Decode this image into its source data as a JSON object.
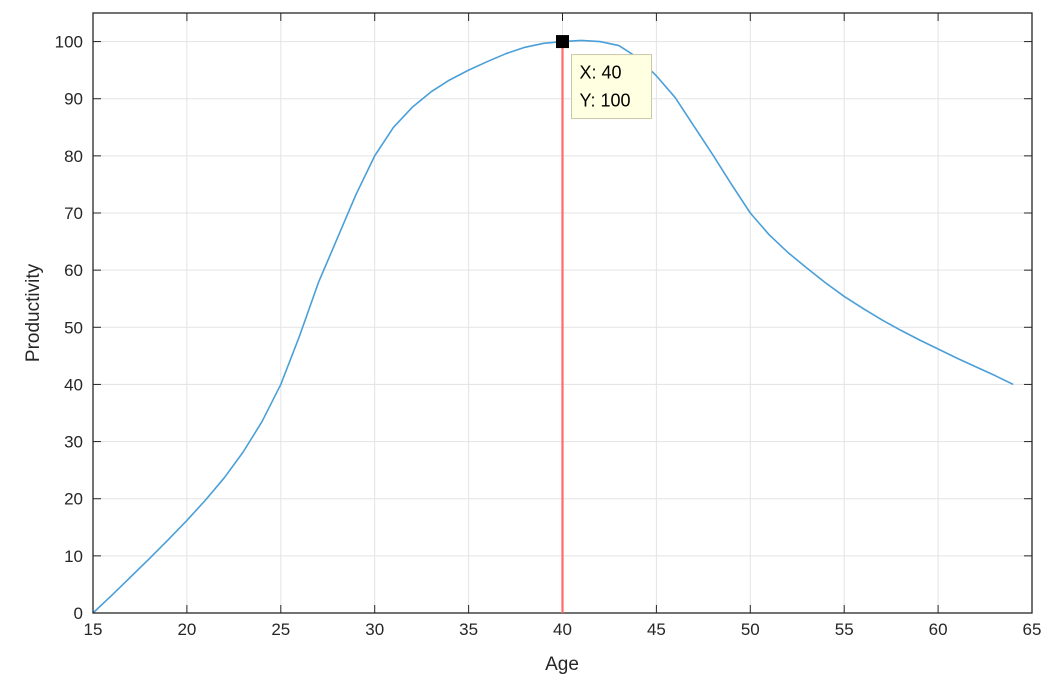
{
  "chart_data": {
    "type": "line",
    "xlabel": "Age",
    "ylabel": "Productivity",
    "xlim": [
      15,
      65
    ],
    "ylim": [
      0,
      105
    ],
    "x_ticks": [
      15,
      20,
      25,
      30,
      35,
      40,
      45,
      50,
      55,
      60,
      65
    ],
    "y_ticks": [
      0,
      10,
      20,
      30,
      40,
      50,
      60,
      70,
      80,
      90,
      100
    ],
    "grid": true,
    "series": [
      {
        "color": "#4a9fd8",
        "x": [
          15,
          16,
          17,
          18,
          19,
          20,
          21,
          22,
          23,
          24,
          25,
          26,
          27,
          28,
          29,
          30,
          31,
          32,
          33,
          34,
          35,
          36,
          37,
          38,
          39,
          40,
          41,
          42,
          43,
          44,
          45,
          46,
          47,
          48,
          49,
          50,
          51,
          52,
          53,
          54,
          55,
          56,
          57,
          58,
          59,
          60,
          61,
          62,
          63,
          64
        ],
        "y": [
          0,
          3.1,
          6.3,
          9.5,
          12.8,
          16.2,
          19.8,
          23.7,
          28.2,
          33.5,
          40,
          48.5,
          57.8,
          65.5,
          73.2,
          80,
          85,
          88.5,
          91.2,
          93.3,
          95,
          96.5,
          97.9,
          99,
          99.7,
          100,
          100.2,
          100,
          99.3,
          97.2,
          94,
          90.2,
          85.2,
          80.2,
          75,
          70,
          66.2,
          63.1,
          60.4,
          57.8,
          55.4,
          53.3,
          51.3,
          49.5,
          47.8,
          46.2,
          44.6,
          43.1,
          41.6,
          40
        ]
      }
    ],
    "annotations": {
      "vertical_line": {
        "x": 40,
        "color": "#ff6b6b"
      },
      "datatip": {
        "x": 40,
        "y": 100,
        "line1": "X: 40",
        "line2": "Y: 100"
      }
    }
  }
}
